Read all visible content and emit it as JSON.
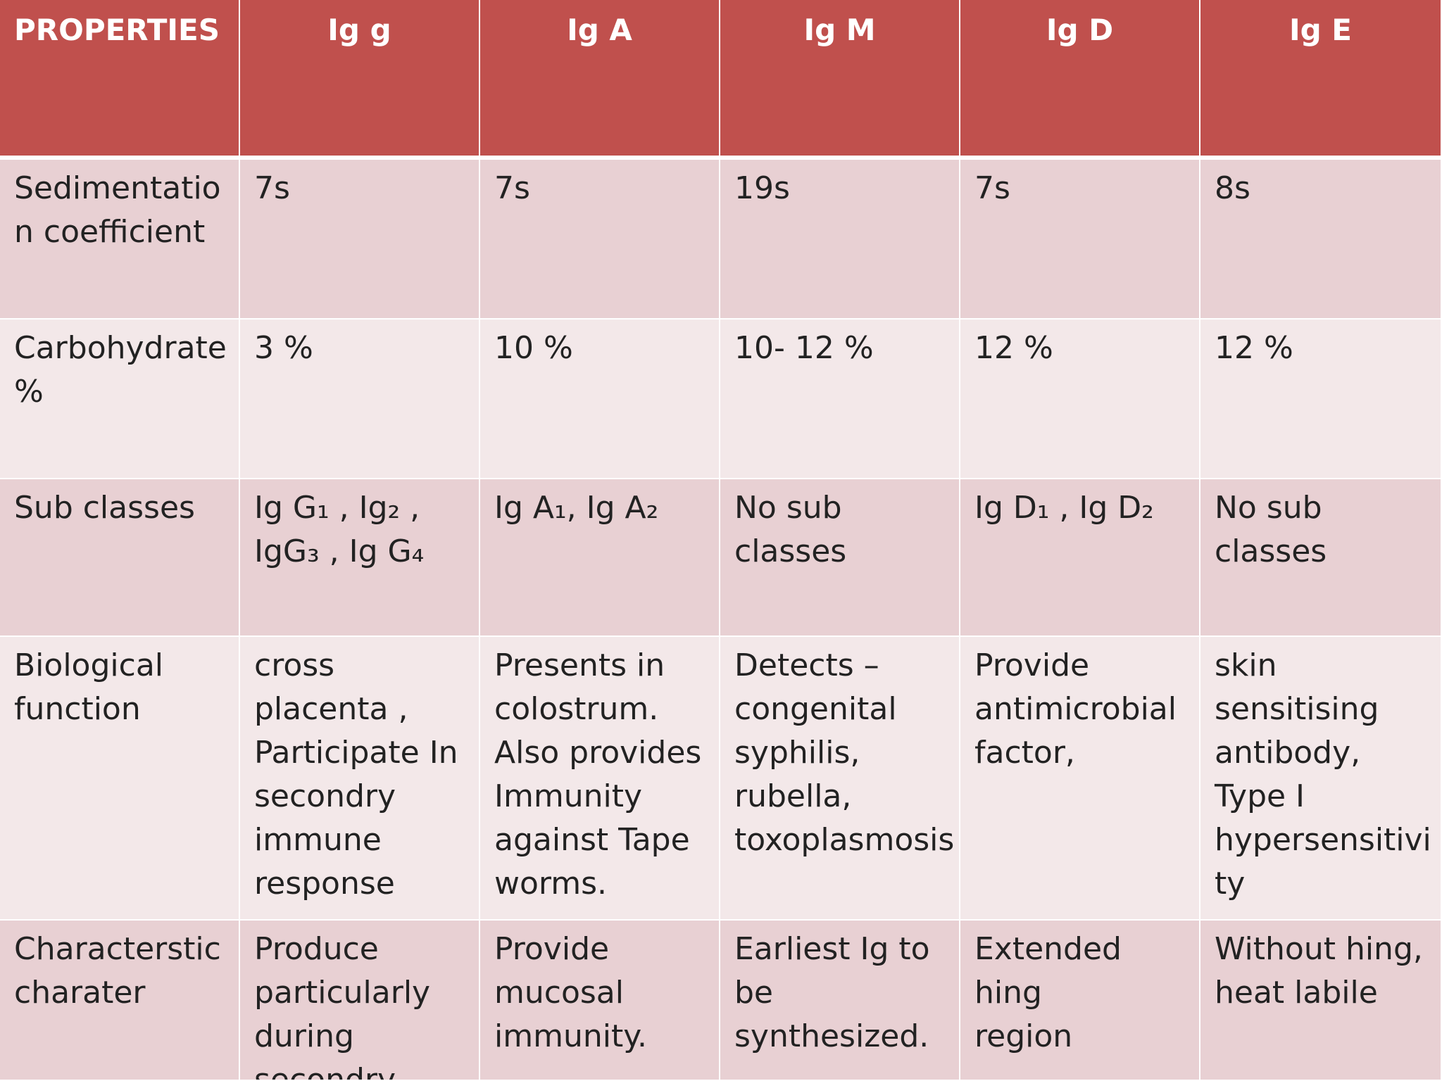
{
  "table": {
    "headers": [
      "PROPERTIES",
      "Ig g",
      "Ig A",
      "Ig  M",
      "Ig  D",
      "Ig   E"
    ],
    "rows": [
      {
        "label": "Sedimentatio\nn coefficient",
        "cells": [
          "7s",
          "7s",
          "19s",
          "7s",
          "8s"
        ]
      },
      {
        "label": "Carbohydrate\n       %",
        "cells": [
          "3 %",
          "10 %",
          "10- 12 %",
          "12 %",
          "12 %"
        ]
      },
      {
        "label": "Sub classes",
        "cells": [
          "Ig G₁ , Ig₂ ,\nIgG₃ , Ig G₄",
          "Ig A₁, Ig A₂",
          "No sub\nclasses",
          "Ig D₁ , Ig D₂",
          "No sub\nclasses"
        ]
      },
      {
        "label": "Biological\n function",
        "cells": [
          "cross\nplacenta ,\nParticipate In\nsecondry\nimmune\nresponse",
          "Presents in\ncolostrum.\nAlso provides\nImmunity\nagainst Tape\nworms.",
          "Detects –\ncongenital\nsyphilis,\nrubella,\ntoxoplasmosis",
          "Provide\nantimicrobial\nfactor,",
          "skin\nsensitising\nantibody,\nType I\nhypersensitivi\nty"
        ]
      },
      {
        "label": "Characterstic\ncharater",
        "cells": [
          "Produce\nparticularly\nduring\nsecondry",
          "Provide\nmucosal\nimmunity.",
          "Earliest  Ig to\nbe\nsynthesized.",
          "Extended hing\nregion",
          "Without hing,\nheat labile"
        ]
      }
    ]
  }
}
